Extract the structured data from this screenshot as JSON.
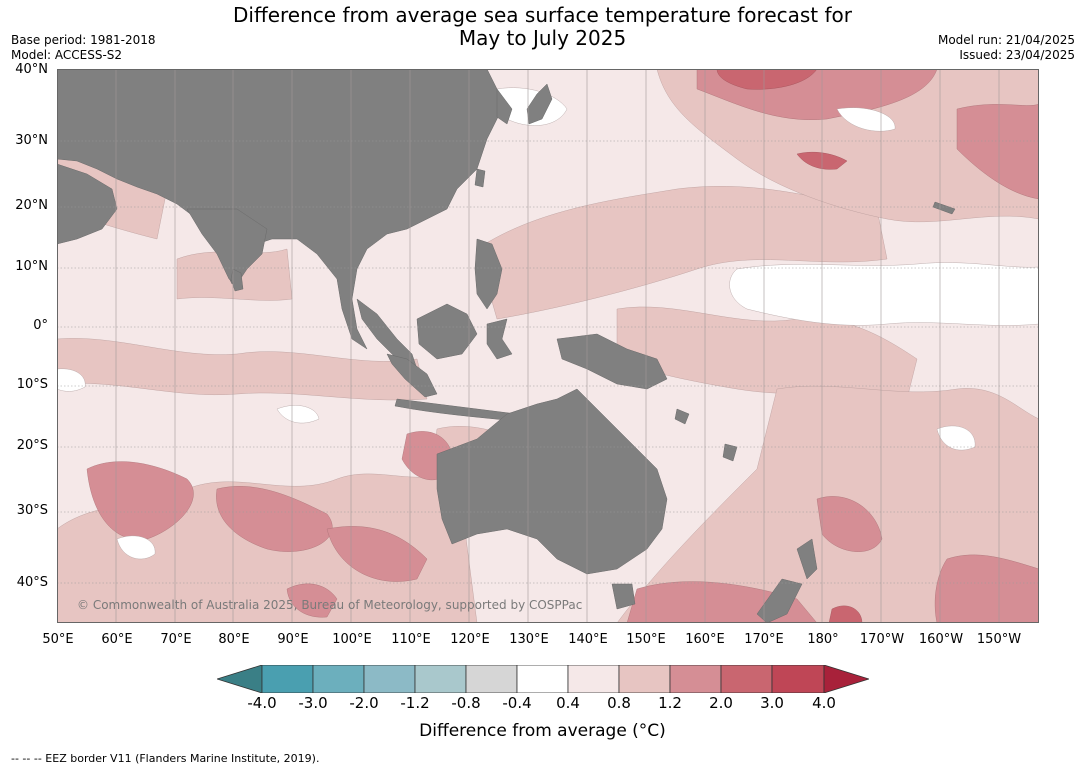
{
  "title_line1": "Difference from average sea surface temperature forecast for",
  "title_line2": "May to July 2025",
  "base_period": "Base period: 1981-2018",
  "model": "Model: ACCESS-S2",
  "model_run": "Model run: 21/04/2025",
  "issued": "Issued: 23/04/2025",
  "lat_labels": [
    "40°N",
    "30°N",
    "20°N",
    "10°N",
    "0°",
    "10°S",
    "20°S",
    "30°S",
    "40°S"
  ],
  "lon_labels": [
    "50°E",
    "60°E",
    "70°E",
    "80°E",
    "90°E",
    "100°E",
    "110°E",
    "120°E",
    "130°E",
    "140°E",
    "150°E",
    "160°E",
    "170°E",
    "180°",
    "170°W",
    "160°W",
    "150°W"
  ],
  "copyright": "© Commonwealth of Australia 2025, Bureau of Meteorology, supported by COSPPac",
  "colorbar": {
    "ticks": [
      "-4.0",
      "-3.0",
      "-2.0",
      "-1.2",
      "-0.8",
      "-0.4",
      "0.4",
      "0.8",
      "1.2",
      "2.0",
      "3.0",
      "4.0"
    ],
    "colors": [
      "#3a7f86",
      "#4a9fb0",
      "#6cafbd",
      "#8cbac6",
      "#a9c8cc",
      "#d6d6d6",
      "#ffffff",
      "#f5e8e8",
      "#e7c5c2",
      "#d58e95",
      "#c96670",
      "#bf4656",
      "#a8213a"
    ],
    "label": "Difference from average (°C)"
  },
  "colors": {
    "land": "#808080",
    "ocean_base": "#f5e8e8"
  },
  "footnote": "--  --  -- EEZ border V11 (Flanders Marine Institute, 2019)."
}
